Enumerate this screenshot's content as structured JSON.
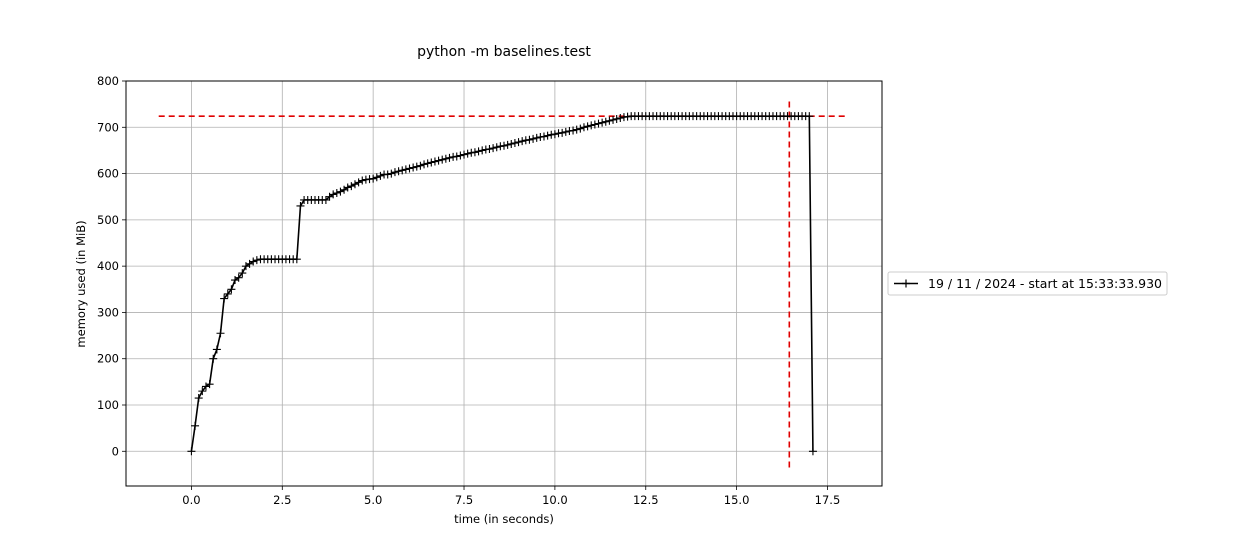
{
  "chart_data": {
    "type": "line",
    "title": "python -m baselines.test",
    "xlabel": "time (in seconds)",
    "ylabel": "memory used (in MiB)",
    "xlim": [
      -1.8,
      19.0
    ],
    "ylim": [
      -75,
      800
    ],
    "xticks": [
      0.0,
      2.5,
      5.0,
      7.5,
      10.0,
      12.5,
      15.0,
      17.5
    ],
    "xtick_labels": [
      "0.0",
      "2.5",
      "5.0",
      "7.5",
      "10.0",
      "12.5",
      "15.0",
      "17.5"
    ],
    "yticks": [
      0,
      100,
      200,
      300,
      400,
      500,
      600,
      700,
      800
    ],
    "ytick_labels": [
      "0",
      "100",
      "200",
      "300",
      "400",
      "500",
      "600",
      "700",
      "800"
    ],
    "grid": true,
    "legend_position": "right",
    "series": [
      {
        "name": "19 / 11 / 2024 - start at 15:33:33.930",
        "color": "#000000",
        "marker": "+",
        "x": [
          0.0,
          0.1,
          0.2,
          0.3,
          0.4,
          0.5,
          0.6,
          0.7,
          0.8,
          0.9,
          1.0,
          1.1,
          1.2,
          1.3,
          1.4,
          1.5,
          1.6,
          1.7,
          1.8,
          1.9,
          2.0,
          2.1,
          2.2,
          2.3,
          2.4,
          2.5,
          2.6,
          2.7,
          2.8,
          2.9,
          3.0,
          3.1,
          3.2,
          3.3,
          3.4,
          3.5,
          3.6,
          3.7,
          3.8,
          3.9,
          4.0,
          4.1,
          4.2,
          4.3,
          4.4,
          4.5,
          4.6,
          4.7,
          4.8,
          4.9,
          5.0,
          5.1,
          5.2,
          5.3,
          5.4,
          5.5,
          5.6,
          5.7,
          5.8,
          5.9,
          6.0,
          6.1,
          6.2,
          6.3,
          6.4,
          6.5,
          6.6,
          6.7,
          6.8,
          6.9,
          7.0,
          7.1,
          7.2,
          7.3,
          7.4,
          7.5,
          7.6,
          7.7,
          7.8,
          7.9,
          8.0,
          8.1,
          8.2,
          8.3,
          8.4,
          8.5,
          8.6,
          8.7,
          8.8,
          8.9,
          9.0,
          9.1,
          9.2,
          9.3,
          9.4,
          9.5,
          9.6,
          9.7,
          9.8,
          9.9,
          10.0,
          10.1,
          10.2,
          10.3,
          10.4,
          10.5,
          10.6,
          10.7,
          10.8,
          10.9,
          11.0,
          11.1,
          11.2,
          11.3,
          11.4,
          11.5,
          11.6,
          11.7,
          11.8,
          11.9,
          12.0,
          12.1,
          12.2,
          12.3,
          12.4,
          12.5,
          12.6,
          12.7,
          12.8,
          12.9,
          13.0,
          13.1,
          13.2,
          13.3,
          13.4,
          13.5,
          13.6,
          13.7,
          13.8,
          13.9,
          14.0,
          14.1,
          14.2,
          14.3,
          14.4,
          14.5,
          14.6,
          14.7,
          14.8,
          14.9,
          15.0,
          15.1,
          15.2,
          15.3,
          15.4,
          15.5,
          15.6,
          15.7,
          15.8,
          15.9,
          16.0,
          16.1,
          16.2,
          16.3,
          16.4,
          16.5,
          16.6,
          16.7,
          16.8,
          16.9,
          17.0,
          17.1
        ],
        "y": [
          0,
          55,
          115,
          130,
          140,
          145,
          200,
          220,
          255,
          330,
          340,
          350,
          370,
          375,
          385,
          400,
          405,
          410,
          413,
          415,
          415,
          415,
          415,
          415,
          415,
          415,
          415,
          415,
          415,
          415,
          530,
          543,
          543,
          543,
          543,
          543,
          543,
          543,
          550,
          555,
          558,
          561,
          565,
          570,
          573,
          577,
          581,
          585,
          587,
          588,
          589,
          592,
          595,
          598,
          598,
          600,
          603,
          605,
          607,
          609,
          611,
          613,
          615,
          617,
          620,
          622,
          624,
          626,
          628,
          630,
          632,
          634,
          636,
          637,
          639,
          641,
          643,
          645,
          646,
          648,
          650,
          652,
          653,
          655,
          657,
          659,
          660,
          662,
          664,
          666,
          668,
          670,
          672,
          673,
          675,
          677,
          679,
          680,
          682,
          684,
          685,
          687,
          688,
          690,
          692,
          693,
          695,
          697,
          700,
          702,
          704,
          706,
          708,
          710,
          712,
          714,
          716,
          718,
          720,
          722,
          723,
          724,
          724,
          724,
          724,
          724,
          724,
          724,
          724,
          724,
          724,
          724,
          724,
          724,
          724,
          724,
          724,
          724,
          724,
          724,
          724,
          724,
          724,
          724,
          724,
          724,
          724,
          724,
          724,
          724,
          724,
          724,
          724,
          724,
          724,
          724,
          724,
          724,
          724,
          724,
          724,
          724,
          724,
          724,
          724,
          724,
          724,
          724,
          724,
          724,
          724,
          0
        ]
      }
    ],
    "reference_lines": [
      {
        "orientation": "horizontal",
        "value": 724,
        "from": -0.9,
        "to": 18.0,
        "color": "#e00000",
        "style": "dashed"
      },
      {
        "orientation": "vertical",
        "value": 16.45,
        "from": -35,
        "to": 762,
        "color": "#e00000",
        "style": "dashed"
      }
    ]
  }
}
